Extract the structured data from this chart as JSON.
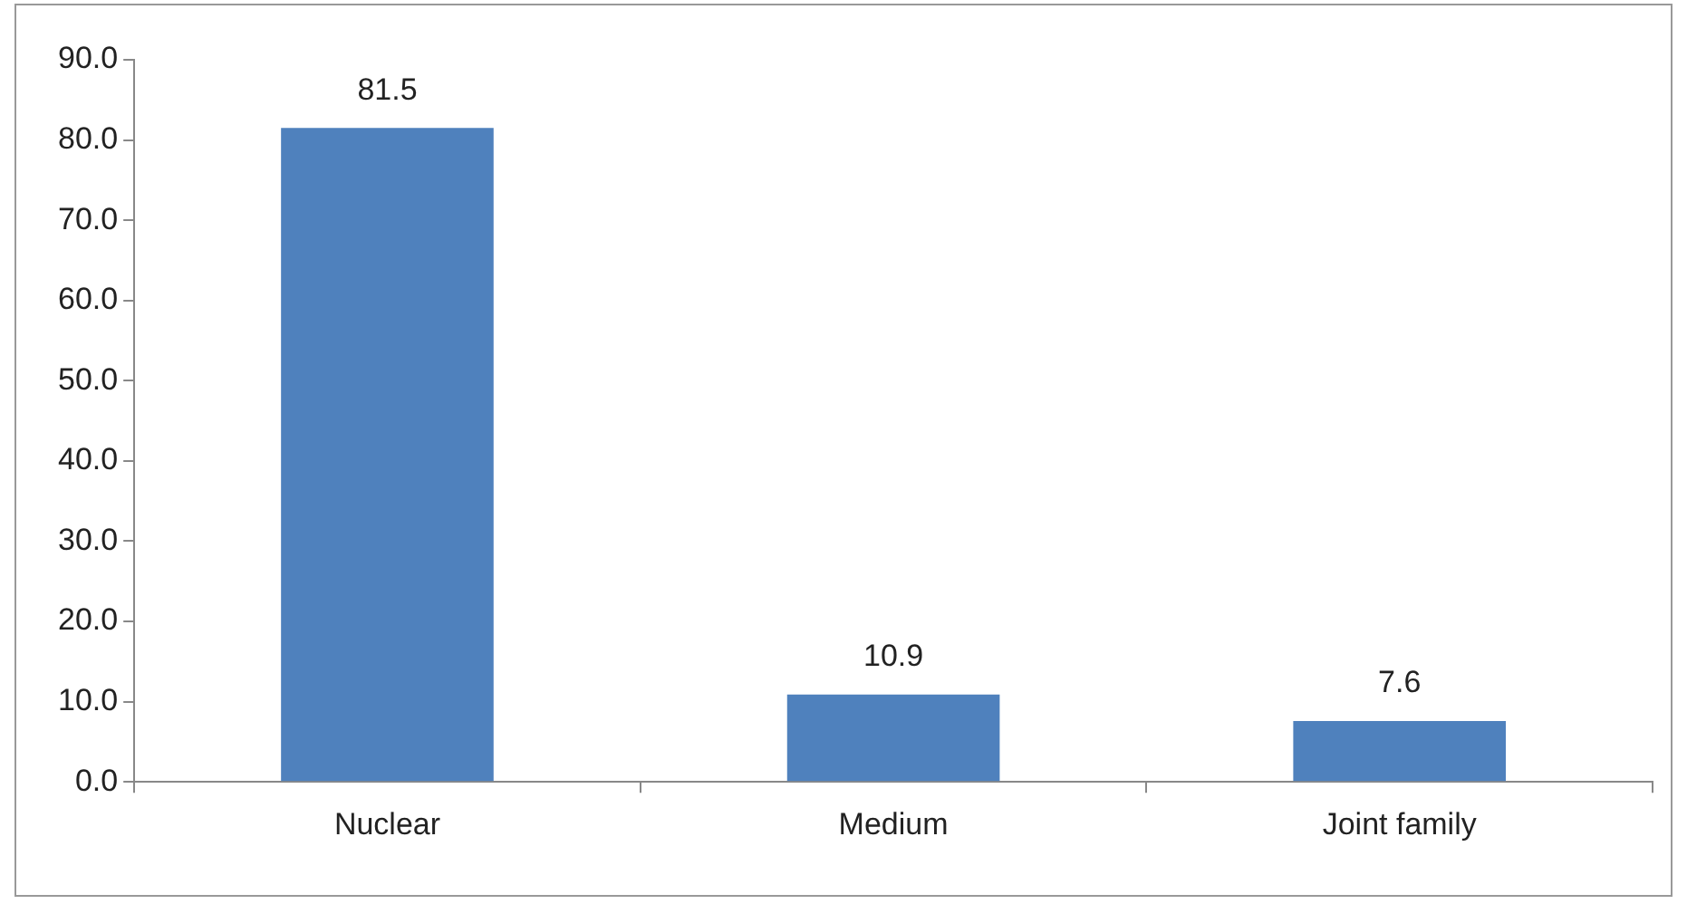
{
  "chart_data": {
    "type": "bar",
    "categories": [
      "Nuclear",
      "Medium",
      "Joint family"
    ],
    "values": [
      81.5,
      10.9,
      7.6
    ],
    "color": "#4f81bd",
    "ylim": [
      0,
      90
    ],
    "yticks": [
      {
        "value": 0,
        "label": "0.0"
      },
      {
        "value": 10,
        "label": "10.0"
      },
      {
        "value": 20,
        "label": "20.0"
      },
      {
        "value": 30,
        "label": "30.0"
      },
      {
        "value": 40,
        "label": "40.0"
      },
      {
        "value": 50,
        "label": "50.0"
      },
      {
        "value": 60,
        "label": "60.0"
      },
      {
        "value": 70,
        "label": "70.0"
      },
      {
        "value": 80,
        "label": "80.0"
      },
      {
        "value": 90,
        "label": "90.0"
      }
    ],
    "data_labels": true,
    "grid": false,
    "legend": false
  }
}
